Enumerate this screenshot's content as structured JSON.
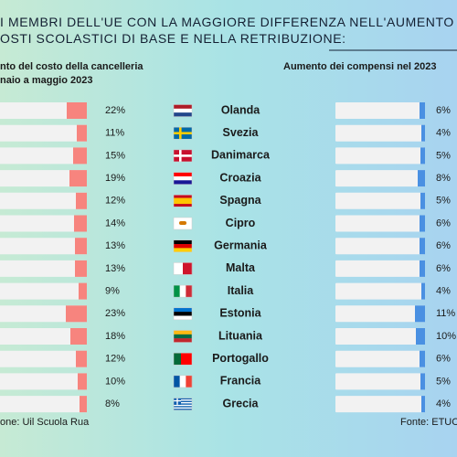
{
  "title": "I MEMBRI DELL'UE CON LA MAGGIORE DIFFERENZA NELL'AUMENTO\nOSTI SCOLASTICI DI BASE E NELLA RETRIBUZIONE:",
  "chart_data": {
    "type": "bar",
    "orientation": "horizontal",
    "categories": [
      "Olanda",
      "Svezia",
      "Danimarca",
      "Croazia",
      "Spagna",
      "Cipro",
      "Germania",
      "Malta",
      "Italia",
      "Estonia",
      "Lituania",
      "Portogallo",
      "Francia",
      "Grecia"
    ],
    "series": [
      {
        "name": "nto del costo della cancelleria\nnaio a maggio 2023",
        "color": "#f7847e",
        "values": [
          22,
          11,
          15,
          19,
          12,
          14,
          13,
          13,
          9,
          23,
          18,
          12,
          10,
          8
        ],
        "value_labels": [
          "22%",
          "11%",
          "15%",
          "19%",
          "12%",
          "14%",
          "13%",
          "13%",
          "9%",
          "23%",
          "18%",
          "12%",
          "10%",
          "8%"
        ]
      },
      {
        "name": "Aumento dei compensi nel 2023",
        "color": "#4a90e2",
        "values": [
          6,
          4,
          5,
          8,
          5,
          6,
          6,
          6,
          4,
          11,
          10,
          6,
          5,
          4
        ],
        "value_labels": [
          "6%",
          "4%",
          "5%",
          "8%",
          "5%",
          "6%",
          "6%",
          "6%",
          "4%",
          "11%",
          "10%",
          "6%",
          "5%",
          "4%"
        ]
      }
    ]
  },
  "footer": {
    "left": "one: Uil Scuola Rua",
    "right": "Fonte: ETUC"
  }
}
